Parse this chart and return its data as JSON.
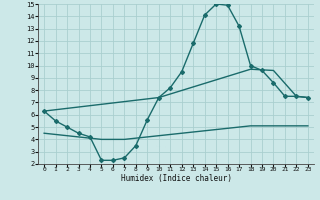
{
  "xlabel": "Humidex (Indice chaleur)",
  "xlim": [
    -0.5,
    23.5
  ],
  "ylim": [
    2,
    15
  ],
  "yticks": [
    2,
    3,
    4,
    5,
    6,
    7,
    8,
    9,
    10,
    11,
    12,
    13,
    14,
    15
  ],
  "xticks": [
    0,
    1,
    2,
    3,
    4,
    5,
    6,
    7,
    8,
    9,
    10,
    11,
    12,
    13,
    14,
    15,
    16,
    17,
    18,
    19,
    20,
    21,
    22,
    23
  ],
  "bg_color": "#cce8e8",
  "grid_color": "#aacfcf",
  "line_color": "#1a6b6b",
  "curve1_x": [
    0,
    1,
    2,
    3,
    4,
    5,
    6,
    7,
    8,
    9,
    10,
    11,
    12,
    13,
    14,
    15,
    16,
    17,
    18,
    19,
    20,
    21,
    22,
    23
  ],
  "curve1_y": [
    6.3,
    5.5,
    5.0,
    4.5,
    4.2,
    2.3,
    2.3,
    2.5,
    3.5,
    5.6,
    7.4,
    8.2,
    9.5,
    11.8,
    14.1,
    15.0,
    14.9,
    13.2,
    10.0,
    9.6,
    8.6,
    7.5,
    7.5,
    7.4
  ],
  "curve2_x": [
    0,
    10,
    18,
    20,
    22,
    23
  ],
  "curve2_y": [
    6.3,
    7.4,
    9.7,
    9.6,
    7.5,
    7.4
  ],
  "curve3_x": [
    0,
    1,
    2,
    3,
    4,
    5,
    6,
    7,
    8,
    9,
    10,
    11,
    12,
    13,
    14,
    15,
    16,
    17,
    18,
    19,
    20,
    21,
    22,
    23
  ],
  "curve3_y": [
    4.5,
    4.4,
    4.3,
    4.2,
    4.1,
    4.0,
    4.0,
    4.0,
    4.1,
    4.2,
    4.3,
    4.4,
    4.5,
    4.6,
    4.7,
    4.8,
    4.9,
    5.0,
    5.1,
    5.1,
    5.1,
    5.1,
    5.1,
    5.1
  ]
}
